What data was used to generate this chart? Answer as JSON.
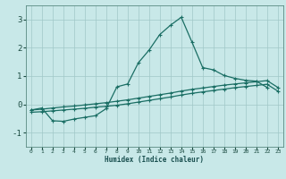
{
  "xlabel": "Humidex (Indice chaleur)",
  "background_color": "#c8e8e8",
  "grid_color": "#a0c8c8",
  "line_color": "#1a6e64",
  "xlim": [
    -0.5,
    23.5
  ],
  "ylim": [
    -1.5,
    3.5
  ],
  "xticks": [
    0,
    1,
    2,
    3,
    4,
    5,
    6,
    7,
    8,
    9,
    10,
    11,
    12,
    13,
    14,
    15,
    16,
    17,
    18,
    19,
    20,
    21,
    22,
    23
  ],
  "yticks": [
    -1,
    0,
    1,
    2,
    3
  ],
  "line_straight1_x": [
    0,
    1,
    2,
    3,
    4,
    5,
    6,
    7,
    8,
    9,
    10,
    11,
    12,
    13,
    14,
    15,
    16,
    17,
    18,
    19,
    20,
    21,
    22,
    23
  ],
  "line_straight1_y": [
    -0.2,
    -0.17,
    -0.13,
    -0.09,
    -0.06,
    -0.02,
    0.02,
    0.06,
    0.11,
    0.16,
    0.22,
    0.28,
    0.34,
    0.4,
    0.47,
    0.53,
    0.58,
    0.63,
    0.68,
    0.72,
    0.76,
    0.8,
    0.84,
    0.6
  ],
  "line_straight2_x": [
    0,
    1,
    2,
    3,
    4,
    5,
    6,
    7,
    8,
    9,
    10,
    11,
    12,
    13,
    14,
    15,
    16,
    17,
    18,
    19,
    20,
    21,
    22,
    23
  ],
  "line_straight2_y": [
    -0.28,
    -0.26,
    -0.23,
    -0.2,
    -0.17,
    -0.14,
    -0.1,
    -0.07,
    -0.03,
    0.02,
    0.08,
    0.14,
    0.2,
    0.26,
    0.33,
    0.39,
    0.44,
    0.49,
    0.54,
    0.59,
    0.63,
    0.67,
    0.71,
    0.47
  ],
  "line_peak_x": [
    0,
    1,
    2,
    3,
    4,
    5,
    6,
    7,
    8,
    9,
    10,
    11,
    12,
    13,
    14,
    15,
    16,
    17,
    18,
    19,
    20,
    21,
    22
  ],
  "line_peak_y": [
    -0.2,
    -0.13,
    -0.58,
    -0.6,
    -0.52,
    -0.46,
    -0.4,
    -0.15,
    0.62,
    0.72,
    1.47,
    1.92,
    2.47,
    2.8,
    3.08,
    2.2,
    1.3,
    1.22,
    1.02,
    0.92,
    0.85,
    0.82,
    0.6
  ]
}
